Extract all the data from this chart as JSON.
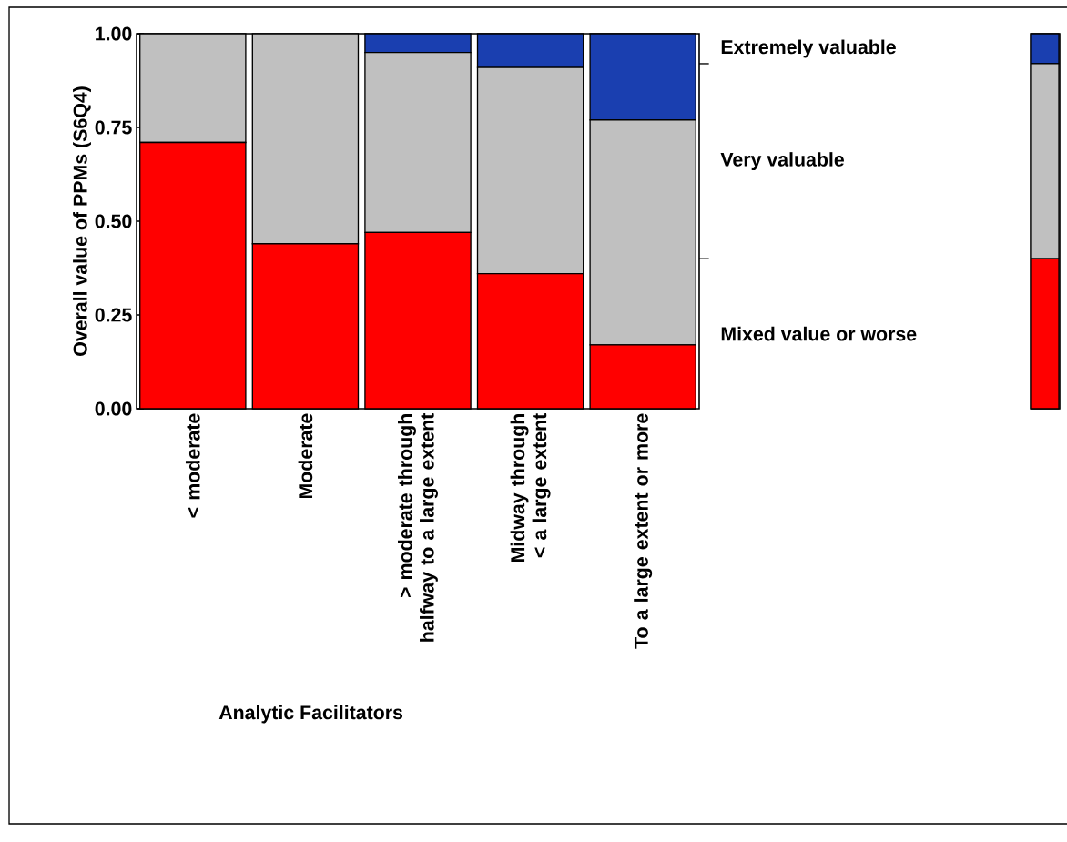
{
  "chart_data": [
    {
      "type": "bar",
      "stacked": true,
      "xlabel": "Analytic Facilitators",
      "ylabel": "Overall value of PPMs (S6Q4)",
      "categories": [
        "< moderate",
        "Moderate",
        "> moderate through halfway to a large extent",
        "Midway through < a large extent",
        "To a large extent or more"
      ],
      "series": [
        {
          "name": "Mixed value or worse",
          "color": "#ff0000",
          "values": [
            0.71,
            0.44,
            0.47,
            0.36,
            0.17
          ]
        },
        {
          "name": "Very valuable",
          "color": "#c0c0c0",
          "values": [
            0.29,
            0.56,
            0.48,
            0.55,
            0.6
          ]
        },
        {
          "name": "Extremely valuable",
          "color": "#1a3fb0",
          "values": [
            0,
            0,
            0.05,
            0.09,
            0.23
          ]
        }
      ],
      "ylim": [
        0,
        1
      ],
      "yticks": [
        {
          "value": 0,
          "label": "0.00"
        },
        {
          "value": 0.25,
          "label": "0.25"
        },
        {
          "value": 0.5,
          "label": "0.50"
        },
        {
          "value": 0.75,
          "label": "0.75"
        },
        {
          "value": 1,
          "label": "1.00"
        }
      ]
    },
    {
      "type": "bar",
      "stacked": true,
      "categories": [
        null
      ],
      "series": [
        {
          "color": "#ff0000",
          "values": [
            0.4
          ]
        },
        {
          "color": "#c0c0c0",
          "values": [
            0.52
          ]
        },
        {
          "color": "#1a3fb0",
          "values": [
            0.08
          ]
        }
      ],
      "ylim": [
        0,
        1
      ]
    }
  ]
}
